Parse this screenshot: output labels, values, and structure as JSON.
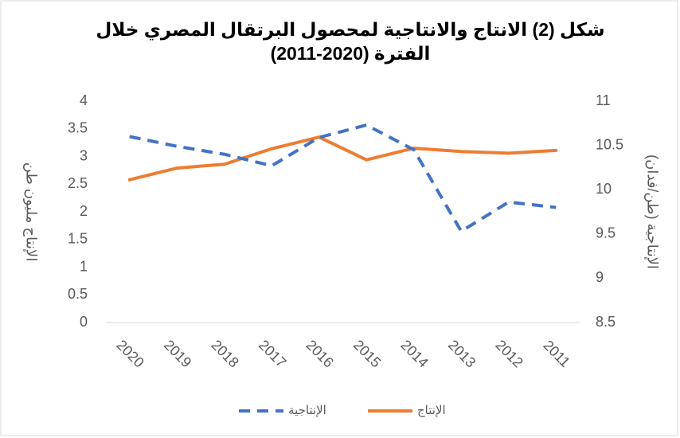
{
  "chart_data": {
    "type": "line",
    "title": "شكل (2) الانتاج والانتاجية لمحصول البرتقال المصري خلال الفترة (2020-2011)",
    "y_label": "الإنتاج مليون طن",
    "y2_label": "الإنتاجية (طن/فدان)",
    "categories": [
      "2020",
      "2019",
      "2018",
      "2017",
      "2016",
      "2015",
      "2014",
      "2013",
      "2012",
      "2011"
    ],
    "series": [
      {
        "name": "الإنتاج",
        "color": "#ed7d31",
        "dash": false,
        "values": [
          2.58,
          2.79,
          2.86,
          3.14,
          3.35,
          2.94,
          3.15,
          3.09,
          3.06,
          3.11
        ]
      },
      {
        "name": "الإنتاجية",
        "color": "#4472c4",
        "dash": true,
        "axis": "y2",
        "values": [
          10.6,
          10.49,
          10.4,
          10.27,
          10.59,
          10.73,
          10.45,
          9.53,
          9.86,
          9.8
        ]
      }
    ],
    "ylim": [
      0,
      4
    ],
    "yticks": [
      0,
      0.5,
      1,
      1.5,
      2,
      2.5,
      3,
      3.5,
      4
    ],
    "y2lim": [
      8.5,
      11
    ],
    "y2ticks": [
      8.5,
      9,
      9.5,
      10,
      10.5,
      11
    ],
    "grid": false,
    "legend": "bottom"
  }
}
